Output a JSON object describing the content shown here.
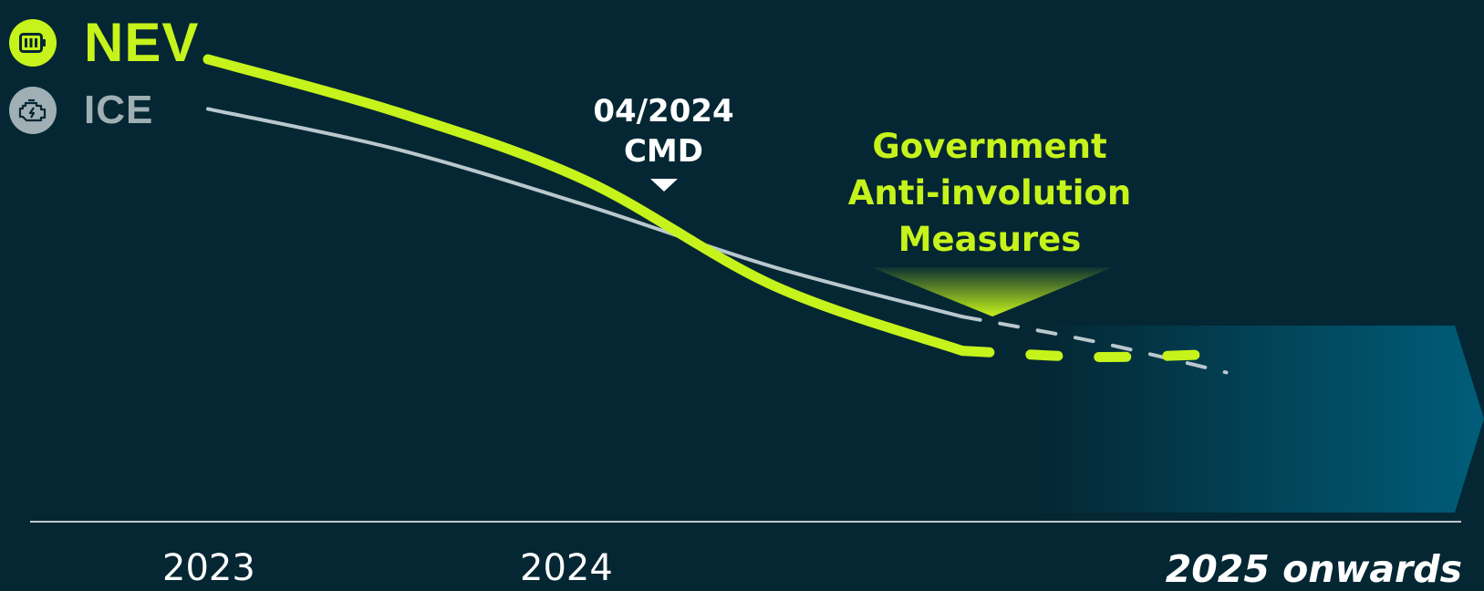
{
  "colors": {
    "background": "#042733",
    "nev": "#c6f31b",
    "ice": "#b9c8cd",
    "ice_icon_bg": "#9fafb4",
    "callout_white": "#ffffff",
    "arrow_band": "#00607d"
  },
  "legend": [
    {
      "key": "nev",
      "label": "NEV",
      "icon": "battery-icon"
    },
    {
      "key": "ice",
      "label": "ICE",
      "icon": "engine-icon"
    }
  ],
  "annotations": {
    "cmd": {
      "date": "04/2024",
      "label": "CMD"
    },
    "government": {
      "lines": [
        "Government",
        "Anti-involution",
        "Measures"
      ]
    }
  },
  "chart_data": {
    "type": "line",
    "title": "",
    "xlabel": "",
    "ylabel": "",
    "x_tick_labels": [
      "2023",
      "2024",
      "2025 onwards"
    ],
    "y_axis": "unlabeled (relative trend)",
    "grid": false,
    "legend_position": "top-left",
    "series": [
      {
        "name": "NEV",
        "color": "#c6f31b",
        "solid_x": [
          2023.0,
          2023.5,
          2024.0,
          2024.5,
          2025.0
        ],
        "solid_y": [
          100,
          83,
          61,
          27,
          6
        ],
        "dashed_x": [
          2025.0,
          2025.35,
          2025.7
        ],
        "dashed_y": [
          6,
          4,
          5
        ]
      },
      {
        "name": "ICE",
        "color": "#b9c8cd",
        "solid_x": [
          2023.0,
          2023.5,
          2024.0,
          2024.5,
          2025.0
        ],
        "solid_y": [
          84,
          71,
          53,
          33,
          17
        ],
        "dashed_x": [
          2025.0,
          2025.35,
          2025.7
        ],
        "dashed_y": [
          17,
          9,
          -1
        ]
      }
    ],
    "annotations": [
      {
        "x": 2024.3,
        "label": "04/2024 CMD",
        "marker": "down-triangle"
      },
      {
        "x": 2025.1,
        "label": "Government Anti-involution Measures",
        "marker": "downward-spotlight"
      }
    ],
    "forecast_region": {
      "from": "2025 onwards",
      "style": "gradient-arrow"
    }
  }
}
